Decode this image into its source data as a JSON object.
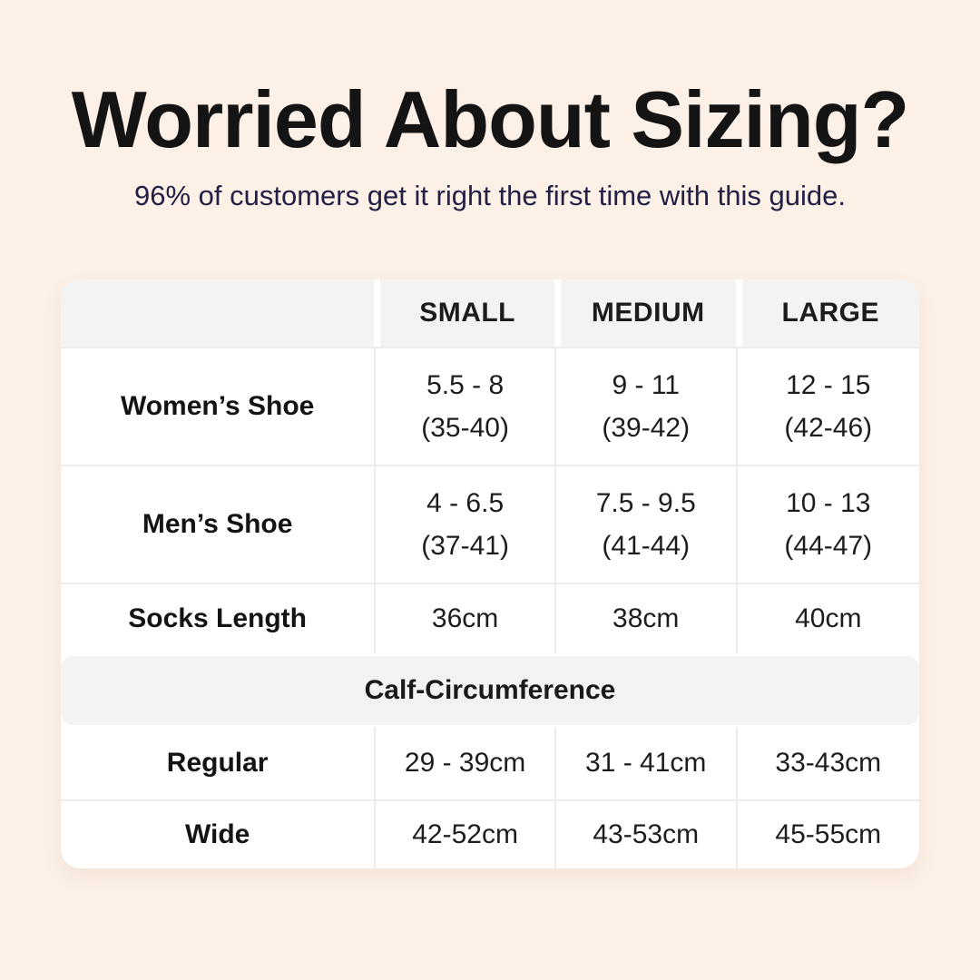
{
  "page": {
    "background_color": "#fcf0e7",
    "title": "Worried About Sizing?",
    "title_color": "#141414",
    "subtitle": "96% of customers get it right the first time with this guide.",
    "subtitle_color": "#232046"
  },
  "size_chart": {
    "header_bg": "#f3f3f3",
    "divider_color": "#ececec",
    "columns": [
      "SMALL",
      "MEDIUM",
      "LARGE"
    ],
    "rows": [
      {
        "label": "Women’s Shoe",
        "values": [
          [
            "5.5 - 8",
            "(35-40)"
          ],
          [
            "9 - 11",
            "(39-42)"
          ],
          [
            "12 - 15",
            "(42-46)"
          ]
        ]
      },
      {
        "label": "Men’s Shoe",
        "values": [
          [
            "4 - 6.5",
            "(37-41)"
          ],
          [
            "7.5 - 9.5",
            "(41-44)"
          ],
          [
            "10 - 13",
            "(44-47)"
          ]
        ]
      },
      {
        "label": "Socks Length",
        "values": [
          "36cm",
          "38cm",
          "40cm"
        ]
      }
    ],
    "section_header": "Calf-Circumference",
    "calf_rows": [
      {
        "label": "Regular",
        "values": [
          "29 - 39cm",
          "31 - 41cm",
          "33-43cm"
        ]
      },
      {
        "label": "Wide",
        "values": [
          "42-52cm",
          "43-53cm",
          "45-55cm"
        ]
      }
    ]
  },
  "chart_data": {
    "type": "table",
    "title": "Worried About Sizing?",
    "subtitle": "96% of customers get it right the first time with this guide.",
    "columns": [
      "",
      "SMALL",
      "MEDIUM",
      "LARGE"
    ],
    "rows": [
      [
        "Women’s Shoe",
        "5.5 - 8 (35-40)",
        "9 - 11 (39-42)",
        "12 - 15 (42-46)"
      ],
      [
        "Men’s Shoe",
        "4 - 6.5 (37-41)",
        "7.5 - 9.5 (41-44)",
        "10 - 13 (44-47)"
      ],
      [
        "Socks Length",
        "36cm",
        "38cm",
        "40cm"
      ],
      [
        "Calf-Circumference",
        "",
        "",
        ""
      ],
      [
        "Regular",
        "29 - 39cm",
        "31 - 41cm",
        "33-43cm"
      ],
      [
        "Wide",
        "42-52cm",
        "43-53cm",
        "45-55cm"
      ]
    ],
    "layout": {
      "section_header_row_index": 3,
      "grid": true,
      "header_background": "#f3f3f3",
      "page_background": "#fcf0e7"
    }
  }
}
